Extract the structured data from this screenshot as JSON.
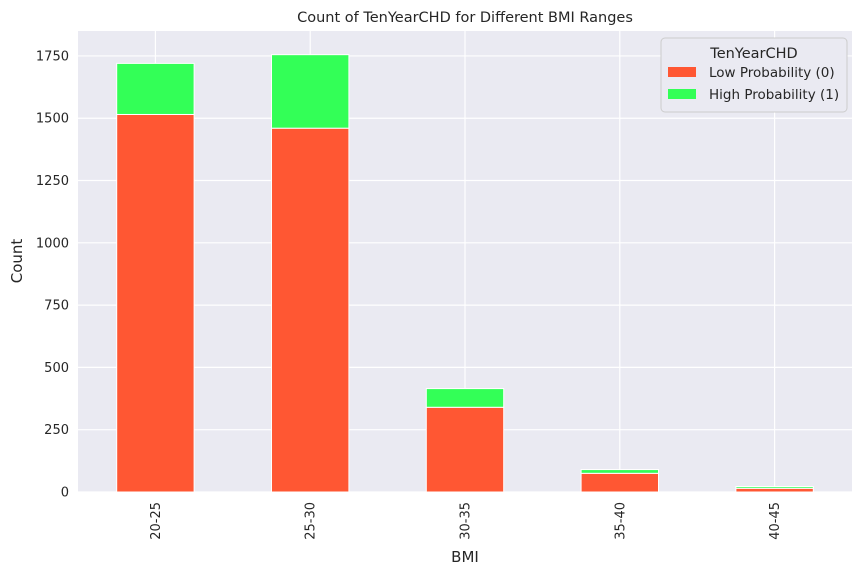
{
  "chart_data": {
    "type": "bar",
    "stacked": true,
    "title": "Count of TenYearCHD for Different BMI Ranges",
    "xlabel": "BMI",
    "ylabel": "Count",
    "categories": [
      "20-25",
      "25-30",
      "30-35",
      "35-40",
      "40-45"
    ],
    "series": [
      {
        "name": "Low Probability (0)",
        "color": "#ff5733",
        "values": [
          1515,
          1460,
          340,
          75,
          15
        ]
      },
      {
        "name": "High Probability (1)",
        "color": "#33ff57",
        "values": [
          205,
          295,
          75,
          15,
          7
        ]
      }
    ],
    "ylim": [
      0,
      1850
    ],
    "yticks": [
      0,
      250,
      500,
      750,
      1000,
      1250,
      1500,
      1750
    ],
    "legend": {
      "title": "TenYearCHD",
      "position": "top-right"
    },
    "grid": true,
    "background": "#eaeaf2"
  }
}
